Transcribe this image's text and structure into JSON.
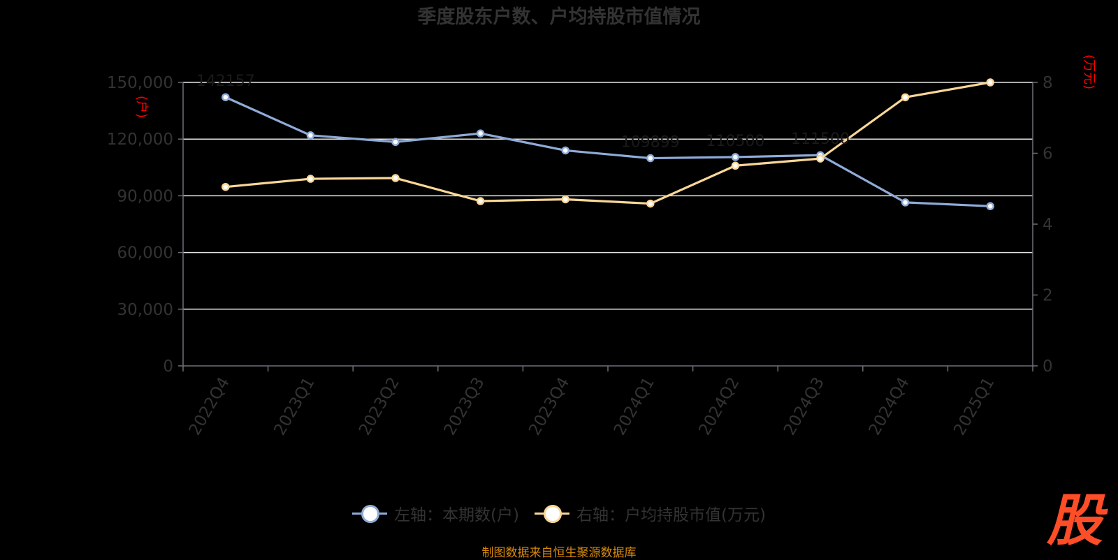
{
  "chart_data": {
    "type": "line",
    "title": "季度股东户数、户均持股市值情况",
    "categories": [
      "2022Q4",
      "2023Q1",
      "2023Q2",
      "2023Q3",
      "2023Q4",
      "2024Q1",
      "2024Q2",
      "2024Q3",
      "2024Q4",
      "2025Q1"
    ],
    "y_left": {
      "unit_label": "(户)",
      "ticks": [
        "150,000",
        "120,000",
        "90,000",
        "60,000",
        "30,000",
        "0"
      ],
      "ylim": [
        0,
        150000
      ]
    },
    "y_right": {
      "unit_label": "(万元)",
      "ticks": [
        "8",
        "6",
        "4",
        "2",
        "0"
      ],
      "ylim": [
        0,
        8
      ]
    },
    "grid": true,
    "series": [
      {
        "name": "左轴：本期数(户)",
        "axis": "left",
        "color": "#8fabd8",
        "values": [
          142157,
          122000,
          118500,
          123000,
          114000,
          109899,
          110500,
          111500,
          86500,
          84500
        ],
        "data_labels": [
          "142157",
          "",
          "",
          "",
          "",
          "109899",
          "110500",
          "111500",
          "",
          ""
        ]
      },
      {
        "name": "右轴：户均持股市值(万元)",
        "axis": "right",
        "color": "#fad797",
        "values": [
          5.05,
          5.28,
          5.3,
          4.65,
          4.7,
          4.58,
          5.65,
          5.85,
          7.58,
          8.0
        ]
      }
    ]
  },
  "legend": [
    {
      "label": "左轴：本期数(户)",
      "color": "#8fabd8"
    },
    {
      "label": "右轴：户均持股市值(万元)",
      "color": "#fad797"
    }
  ],
  "footer": {
    "source": "制图数据来自恒生聚源数据库"
  },
  "logo": {
    "text": "股",
    "color": "#ff4d28"
  }
}
